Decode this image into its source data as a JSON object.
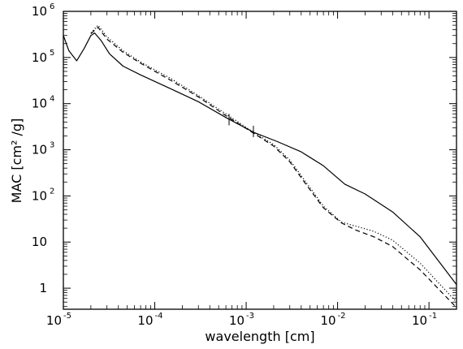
{
  "chart_data": {
    "type": "line",
    "title": "",
    "xlabel": "wavelength  [cm]",
    "ylabel": "MAC  [cm² /g]",
    "x_scale": "log",
    "y_scale": "log",
    "xlim": [
      1e-05,
      0.2
    ],
    "ylim": [
      0.35,
      1000000.0
    ],
    "grid": false,
    "legend": "none",
    "x_ticks": [
      {
        "value": 1e-05,
        "base": "10",
        "exp": "-5"
      },
      {
        "value": 0.0001,
        "base": "10",
        "exp": "-4"
      },
      {
        "value": 0.001,
        "base": "10",
        "exp": "-3"
      },
      {
        "value": 0.01,
        "base": "10",
        "exp": "-2"
      },
      {
        "value": 0.1,
        "base": "10",
        "exp": "-1"
      }
    ],
    "y_ticks": [
      {
        "value": 1,
        "base": "1",
        "exp": ""
      },
      {
        "value": 10,
        "base": "10",
        "exp": ""
      },
      {
        "value": 100,
        "base": "10",
        "exp": "2"
      },
      {
        "value": 1000,
        "base": "10",
        "exp": "3"
      },
      {
        "value": 10000,
        "base": "10",
        "exp": "4"
      },
      {
        "value": 100000,
        "base": "10",
        "exp": "5"
      },
      {
        "value": 1000000,
        "base": "10",
        "exp": "6"
      }
    ],
    "series": [
      {
        "style": "solid",
        "x": [
          1e-05,
          1.15e-05,
          1.4e-05,
          1.7e-05,
          2e-05,
          2.2e-05,
          2.6e-05,
          3.2e-05,
          4.5e-05,
          7e-05,
          0.00015,
          0.0003,
          0.0006,
          0.0012,
          0.0022,
          0.004,
          0.007,
          0.012,
          0.02,
          0.04,
          0.08,
          0.2
        ],
        "y": [
          300000,
          140000,
          85000,
          160000,
          300000,
          340000,
          230000,
          120000,
          65000,
          42000,
          21000,
          11000,
          5000,
          2400,
          1500,
          900,
          450,
          180,
          110,
          45,
          13,
          1.2
        ]
      },
      {
        "style": "dotted",
        "x": [
          2e-05,
          2.4e-05,
          3e-05,
          4.5e-05,
          7e-05,
          0.00015,
          0.0003,
          0.0006,
          0.0012,
          0.002,
          0.003,
          0.0045,
          0.007,
          0.011,
          0.016,
          0.025,
          0.04,
          0.08,
          0.2
        ],
        "y": [
          340000,
          500000,
          280000,
          140000,
          80000,
          35000,
          15000,
          6000,
          2400,
          1300,
          600,
          200,
          60,
          27,
          22,
          17,
          11,
          3.5,
          0.5
        ]
      },
      {
        "style": "dashed",
        "x": [
          2e-05,
          2.4e-05,
          3e-05,
          4.5e-05,
          7e-05,
          0.00015,
          0.0003,
          0.0006,
          0.0012,
          0.002,
          0.003,
          0.0045,
          0.007,
          0.011,
          0.016,
          0.025,
          0.04,
          0.08,
          0.2
        ],
        "y": [
          330000,
          450000,
          250000,
          130000,
          75000,
          32000,
          14000,
          5500,
          2300,
          1200,
          550,
          180,
          55,
          26,
          18,
          13,
          8,
          2.5,
          0.38
        ]
      }
    ],
    "markers": [
      {
        "x": 0.00065,
        "y": 4500
      },
      {
        "x": 0.0012,
        "y": 2500
      }
    ]
  }
}
